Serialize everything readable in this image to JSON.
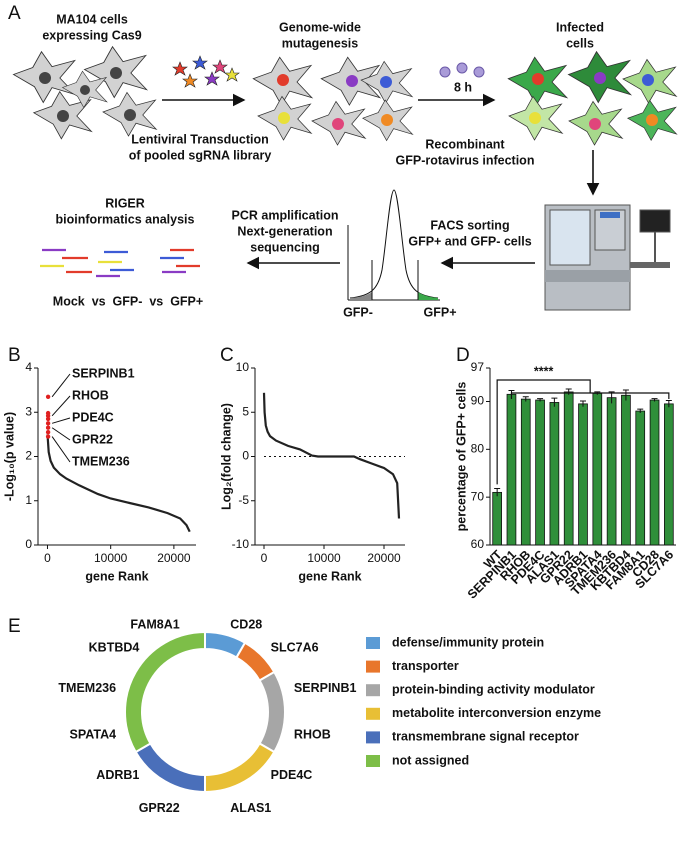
{
  "panel_a": {
    "label": "A",
    "cells_title": [
      "MA104 cells",
      "expressing Cas9"
    ],
    "mutagenesis": [
      "Genome-wide",
      "mutagenesis"
    ],
    "infected": [
      "Infected",
      "cells"
    ],
    "transduction": [
      "Lentiviral Transduction",
      "of pooled sgRNA library"
    ],
    "time": "8 h",
    "infection": [
      "Recombinant",
      "GFP-rotavirus infection"
    ],
    "facs": [
      "FACS sorting",
      "GFP+ and GFP- cells"
    ],
    "pcr": [
      "PCR amplification",
      "Next-generation",
      "sequencing"
    ],
    "riger": [
      "RIGER",
      "bioinformatics analysis"
    ],
    "comparison": "Mock  vs  GFP-  vs  GFP+",
    "histogram_labels": [
      "GFP-",
      "GFP+"
    ]
  },
  "chart_data": [
    {
      "panel": "B",
      "type": "line",
      "xlabel": "gene Rank",
      "ylabel": "-Log₁₀(p value)",
      "xlim": [
        -1500,
        23500
      ],
      "xticks": [
        0,
        10000,
        20000
      ],
      "ylim": [
        0,
        4
      ],
      "yticks": [
        0,
        1,
        2,
        3,
        4
      ],
      "series": [
        {
          "color": "#222222",
          "x": [
            0,
            200,
            500,
            1000,
            2000,
            3000,
            5000,
            8000,
            10000,
            13000,
            16000,
            19000,
            21000,
            22000,
            22500
          ],
          "values": [
            2.5,
            2.1,
            1.9,
            1.75,
            1.6,
            1.5,
            1.35,
            1.15,
            1.05,
            0.95,
            0.85,
            0.72,
            0.6,
            0.45,
            0.3
          ]
        },
        {
          "color": "#e02020",
          "mode": "markers",
          "x": [
            100,
            100,
            100,
            100,
            100,
            100,
            100,
            100
          ],
          "values": [
            3.35,
            2.98,
            2.92,
            2.85,
            2.75,
            2.65,
            2.55,
            2.45
          ]
        }
      ],
      "annotations": [
        "SERPINB1",
        "RHOB",
        "PDE4C",
        "GPR22",
        "TMEM236"
      ]
    },
    {
      "panel": "C",
      "type": "line",
      "xlabel": "gene Rank",
      "ylabel": "Log₂(fold change)",
      "xlim": [
        -1500,
        23500
      ],
      "xticks": [
        0,
        10000,
        20000
      ],
      "ylim": [
        -10,
        10
      ],
      "yticks": [
        -10,
        -5,
        0,
        5,
        10
      ],
      "hline": 0,
      "series": [
        {
          "color": "#222222",
          "x": [
            0,
            100,
            300,
            600,
            1000,
            2000,
            4000,
            6000,
            8000,
            9000,
            12000,
            15000,
            16000,
            18000,
            20000,
            21500,
            22200,
            22500
          ],
          "values": [
            7.2,
            5,
            3.5,
            2.8,
            2.3,
            1.8,
            1.2,
            0.8,
            0.1,
            0,
            0,
            0,
            -0.3,
            -0.8,
            -1.3,
            -2,
            -3,
            -7
          ]
        }
      ]
    },
    {
      "panel": "D",
      "type": "bar",
      "ylabel": "percentage of GFP+ cells",
      "color": "#2f8f3a",
      "categories": [
        "WT",
        "SERPINB1",
        "RHOB",
        "PDE4C",
        "ALAS1",
        "GPR22",
        "ADRB1",
        "SPATA4",
        "TMEM236",
        "KBTBD4",
        "FAM8A1",
        "CD28",
        "SLC7A6"
      ],
      "values": [
        71,
        91.5,
        90.5,
        90.3,
        89.8,
        92,
        89.5,
        91.7,
        90.8,
        91.3,
        88,
        90.3,
        89.5
      ],
      "errors": [
        0.8,
        0.8,
        0.5,
        0.3,
        0.9,
        0.6,
        0.6,
        0.3,
        1.2,
        1.1,
        0.4,
        0.3,
        0.7
      ],
      "ylim": [
        60,
        97
      ],
      "yticks": [
        60,
        70,
        80,
        90,
        97
      ],
      "annotation": "****"
    },
    {
      "panel": "E",
      "type": "pie",
      "categories": [
        "defense/immunity protein",
        "transporter",
        "protein-binding activity modulator",
        "metabolite interconversion enzyme",
        "transmembrane signal receptor",
        "not assigned"
      ],
      "values": [
        1,
        1,
        2,
        2,
        2,
        4
      ],
      "colors": [
        "#5b9bd5",
        "#e8762b",
        "#a6a6a6",
        "#e8bf35",
        "#4a6fba",
        "#7dbe48"
      ],
      "labels": [
        "CD28",
        "SLC7A6",
        "SERPINB1",
        "RHOB",
        "PDE4C",
        "ALAS1",
        "GPR22",
        "ADRB1",
        "SPATA4",
        "TMEM236",
        "KBTBD4",
        "FAM8A1"
      ]
    }
  ]
}
